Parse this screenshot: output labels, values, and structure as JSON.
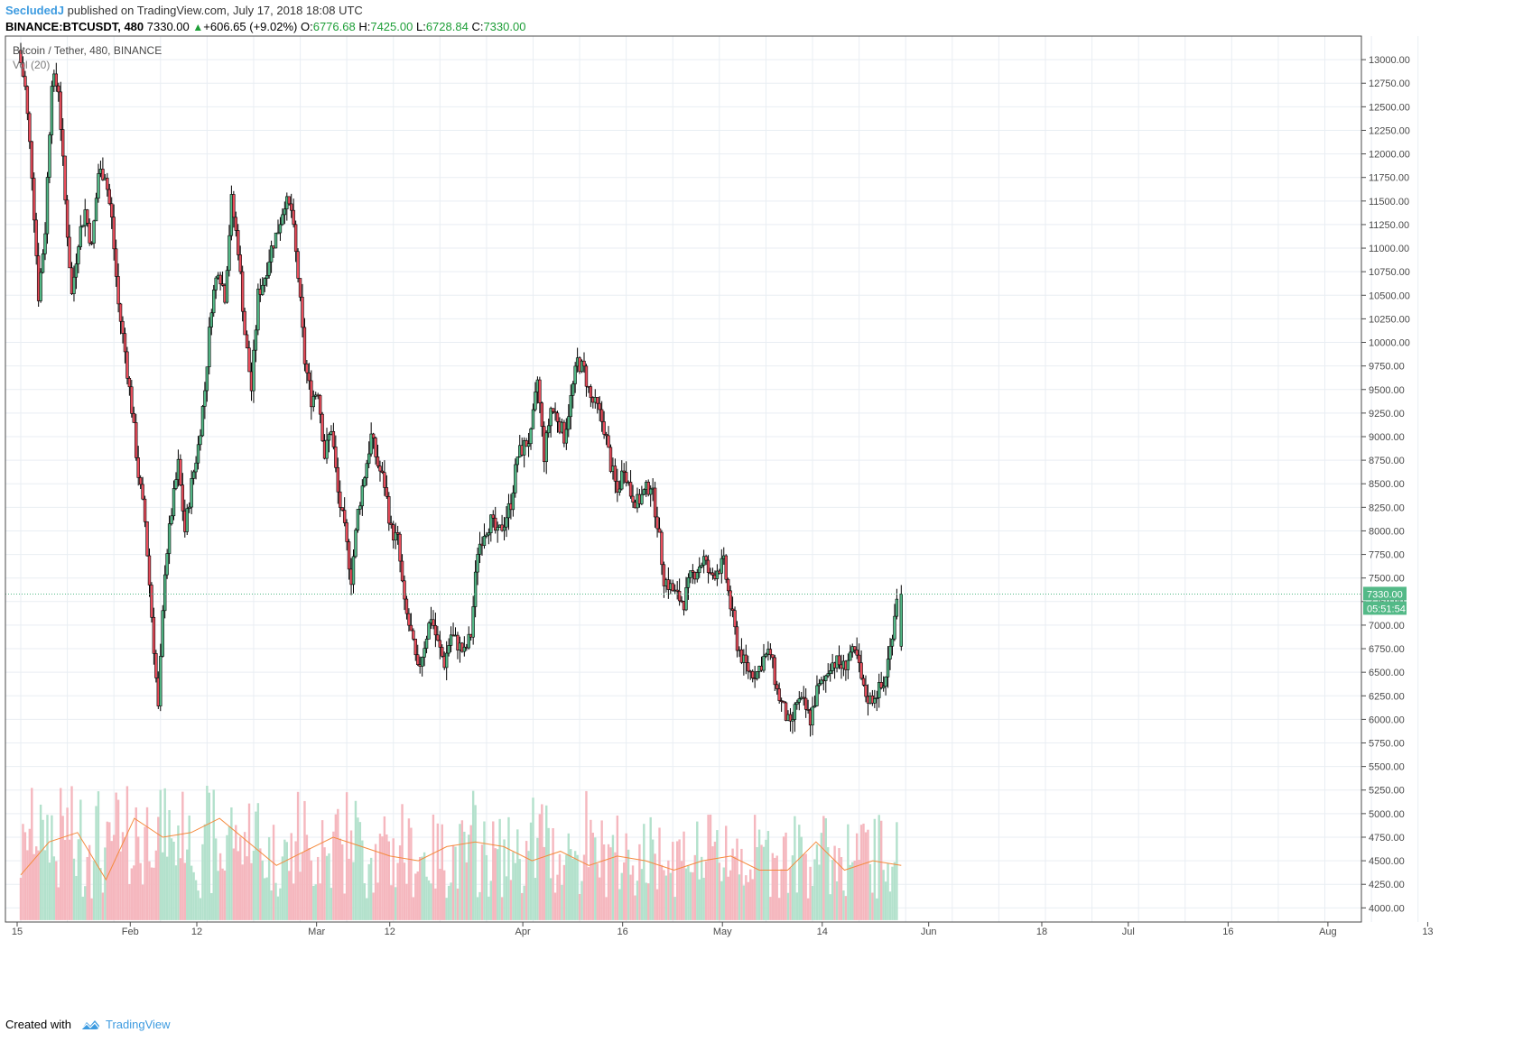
{
  "header": {
    "author": "SecludedJ",
    "published_text": "published on TradingView.com, July 17, 2018 18:08 UTC",
    "symbol": "BINANCE:BTCUSDT, 480",
    "last": "7330.00",
    "change": "+606.65 (+9.02%)",
    "open_label": "O:",
    "open": "6776.68",
    "high_label": "H:",
    "high": "7425.00",
    "low_label": "L:",
    "low": "6728.84",
    "close_label": "C:",
    "close": "7330.00"
  },
  "pane_title": "Bitcoin / Tether, 480, BINANCE",
  "volume_label": "Vol (20)",
  "price_badge": "7330.00",
  "timer_badge": "05:51:54",
  "footer": {
    "created_with": "Created with",
    "brand": "TradingView"
  },
  "colors": {
    "up": "#53b987",
    "down": "#eb4d5c",
    "candle_border": "#000000",
    "vol_up": "#b3e1cc",
    "vol_down": "#f5b7be",
    "vol_ma": "#f58a3d",
    "grid": "#e9eef3",
    "last_line": "#53b987"
  },
  "chart_data": {
    "type": "candlestick",
    "title": "Bitcoin / Tether, 480, BINANCE",
    "y_axis": {
      "min": 3850,
      "max": 13250,
      "ticks": [
        4000,
        4250,
        4500,
        4750,
        5000,
        5250,
        5500,
        5750,
        6000,
        6250,
        6500,
        6750,
        7000,
        7250,
        7500,
        7750,
        8000,
        8250,
        8500,
        8750,
        9000,
        9250,
        9500,
        9750,
        10000,
        10250,
        10500,
        10750,
        11000,
        11250,
        11500,
        11750,
        12000,
        12250,
        12500,
        12750,
        13000
      ]
    },
    "x_axis": {
      "ticks": [
        "15",
        "Feb",
        "12",
        "Mar",
        "12",
        "Apr",
        "16",
        "May",
        "14",
        "Jun",
        "18",
        "Jul",
        "16",
        "Aug",
        "13"
      ],
      "tick_days": [
        0,
        17,
        27,
        45,
        56,
        76,
        91,
        106,
        121,
        137,
        154,
        167,
        182,
        197,
        212
      ]
    },
    "last_price": 7330,
    "approx_close_path_by_day": [
      [
        0,
        13100
      ],
      [
        1,
        12700
      ],
      [
        2,
        11800
      ],
      [
        3,
        10500
      ],
      [
        4,
        11200
      ],
      [
        5,
        12800
      ],
      [
        6,
        12700
      ],
      [
        7,
        11500
      ],
      [
        8,
        10500
      ],
      [
        9,
        11100
      ],
      [
        10,
        11400
      ],
      [
        11,
        11000
      ],
      [
        12,
        11800
      ],
      [
        13,
        11800
      ],
      [
        14,
        11300
      ],
      [
        15,
        10400
      ],
      [
        16,
        9900
      ],
      [
        17,
        9300
      ],
      [
        18,
        8600
      ],
      [
        19,
        8100
      ],
      [
        20,
        7100
      ],
      [
        21,
        6100
      ],
      [
        22,
        7600
      ],
      [
        23,
        8200
      ],
      [
        24,
        8700
      ],
      [
        25,
        8000
      ],
      [
        26,
        8500
      ],
      [
        27,
        8900
      ],
      [
        28,
        9500
      ],
      [
        29,
        10400
      ],
      [
        30,
        10800
      ],
      [
        31,
        10500
      ],
      [
        32,
        11500
      ],
      [
        33,
        11000
      ],
      [
        34,
        10100
      ],
      [
        35,
        9500
      ],
      [
        36,
        10500
      ],
      [
        37,
        10700
      ],
      [
        38,
        11000
      ],
      [
        39,
        11200
      ],
      [
        40,
        11500
      ],
      [
        41,
        11400
      ],
      [
        42,
        10700
      ],
      [
        43,
        9800
      ],
      [
        44,
        9400
      ],
      [
        45,
        9500
      ],
      [
        46,
        8800
      ],
      [
        47,
        9100
      ],
      [
        48,
        8400
      ],
      [
        49,
        8000
      ],
      [
        50,
        7500
      ],
      [
        51,
        8200
      ],
      [
        52,
        8600
      ],
      [
        53,
        9000
      ],
      [
        54,
        8700
      ],
      [
        55,
        8500
      ],
      [
        56,
        8000
      ],
      [
        57,
        7900
      ],
      [
        58,
        7200
      ],
      [
        59,
        6900
      ],
      [
        60,
        6500
      ],
      [
        61,
        6800
      ],
      [
        62,
        7100
      ],
      [
        63,
        6800
      ],
      [
        64,
        6600
      ],
      [
        65,
        6900
      ],
      [
        66,
        6800
      ],
      [
        67,
        6700
      ],
      [
        68,
        6900
      ],
      [
        69,
        7800
      ],
      [
        70,
        8000
      ],
      [
        71,
        8100
      ],
      [
        72,
        7950
      ],
      [
        73,
        8100
      ],
      [
        74,
        8300
      ],
      [
        75,
        8800
      ],
      [
        76,
        8900
      ],
      [
        77,
        9000
      ],
      [
        78,
        9600
      ],
      [
        79,
        8800
      ],
      [
        80,
        9300
      ],
      [
        81,
        9200
      ],
      [
        82,
        9000
      ],
      [
        83,
        9400
      ],
      [
        84,
        9800
      ],
      [
        85,
        9700
      ],
      [
        86,
        9400
      ],
      [
        87,
        9300
      ],
      [
        88,
        9100
      ],
      [
        89,
        8700
      ],
      [
        90,
        8400
      ],
      [
        91,
        8700
      ],
      [
        92,
        8400
      ],
      [
        93,
        8300
      ],
      [
        94,
        8400
      ],
      [
        95,
        8500
      ],
      [
        96,
        8100
      ],
      [
        97,
        7500
      ],
      [
        98,
        7400
      ],
      [
        99,
        7300
      ],
      [
        100,
        7250
      ],
      [
        101,
        7500
      ],
      [
        102,
        7600
      ],
      [
        103,
        7700
      ],
      [
        104,
        7500
      ],
      [
        105,
        7600
      ],
      [
        106,
        7650
      ],
      [
        107,
        7200
      ],
      [
        108,
        6800
      ],
      [
        109,
        6600
      ],
      [
        110,
        6500
      ],
      [
        111,
        6500
      ],
      [
        112,
        6650
      ],
      [
        113,
        6700
      ],
      [
        114,
        6300
      ],
      [
        115,
        6100
      ],
      [
        116,
        5900
      ],
      [
        117,
        6200
      ],
      [
        118,
        6150
      ],
      [
        119,
        6000
      ],
      [
        120,
        6300
      ],
      [
        121,
        6400
      ],
      [
        122,
        6600
      ],
      [
        123,
        6600
      ],
      [
        124,
        6550
      ],
      [
        125,
        6700
      ],
      [
        126,
        6650
      ],
      [
        127,
        6300
      ],
      [
        128,
        6200
      ],
      [
        129,
        6300
      ],
      [
        130,
        6350
      ],
      [
        131,
        6750
      ],
      [
        132,
        7330
      ]
    ],
    "volume_ma_approx": [
      4350,
      4700,
      4800,
      4300,
      4950,
      4750,
      4800,
      4950,
      4700,
      4450,
      4600,
      4750,
      4650,
      4550,
      4500,
      4650,
      4700,
      4650,
      4500,
      4600,
      4450,
      4550,
      4500,
      4400,
      4500,
      4550,
      4400,
      4400,
      4700,
      4400,
      4500,
      4450
    ]
  }
}
